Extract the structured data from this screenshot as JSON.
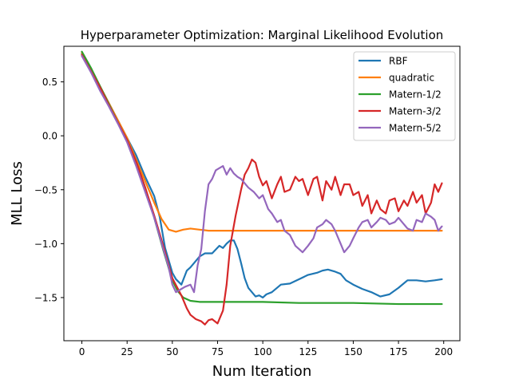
{
  "chart_data": {
    "type": "line",
    "title": "Hyperparameter Optimization: Marginal Likelihood Evolution",
    "xlabel": "Num Iteration",
    "ylabel": "MLL Loss",
    "xlim": [
      -9.95,
      208.95
    ],
    "ylim": [
      -1.9,
      0.83
    ],
    "xticks": [
      0,
      25,
      50,
      75,
      100,
      125,
      150,
      175,
      200
    ],
    "xtick_labels": [
      "0",
      "25",
      "50",
      "75",
      "100",
      "125",
      "150",
      "175",
      "200"
    ],
    "yticks": [
      -1.5,
      -1.0,
      -0.5,
      0.0,
      0.5
    ],
    "ytick_labels": [
      "−1.5",
      "−1.0",
      "−0.5",
      "0.0",
      "0.5"
    ],
    "grid": false,
    "legend_position": "top-right",
    "series": [
      {
        "name": "RBF",
        "color": "#1f77b4",
        "x": [
          0,
          5,
          10,
          15,
          20,
          25,
          30,
          35,
          40,
          43,
          46,
          50,
          52,
          55,
          58,
          60,
          62,
          65,
          68,
          72,
          76,
          78,
          80,
          82,
          84,
          86,
          88,
          90,
          92,
          94,
          96,
          98,
          100,
          102,
          105,
          110,
          115,
          120,
          125,
          130,
          133,
          136,
          140,
          143,
          146,
          150,
          155,
          160,
          165,
          170,
          175,
          180,
          185,
          190,
          195,
          199
        ],
        "y": [
          0.76,
          0.62,
          0.46,
          0.3,
          0.14,
          -0.02,
          -0.18,
          -0.38,
          -0.56,
          -0.75,
          -1.04,
          -1.27,
          -1.33,
          -1.38,
          -1.25,
          -1.22,
          -1.18,
          -1.12,
          -1.09,
          -1.09,
          -1.02,
          -1.04,
          -1.0,
          -0.97,
          -0.97,
          -1.05,
          -1.18,
          -1.32,
          -1.41,
          -1.45,
          -1.49,
          -1.48,
          -1.5,
          -1.47,
          -1.45,
          -1.38,
          -1.37,
          -1.33,
          -1.29,
          -1.27,
          -1.25,
          -1.24,
          -1.26,
          -1.28,
          -1.34,
          -1.38,
          -1.42,
          -1.45,
          -1.49,
          -1.47,
          -1.41,
          -1.34,
          -1.34,
          -1.35,
          -1.34,
          -1.33
        ]
      },
      {
        "name": "quadratic",
        "color": "#ff7f0e",
        "x": [
          0,
          5,
          10,
          15,
          20,
          25,
          30,
          35,
          40,
          44,
          48,
          52,
          56,
          60,
          65,
          70,
          80,
          100,
          125,
          150,
          175,
          199
        ],
        "y": [
          0.77,
          0.62,
          0.46,
          0.3,
          0.14,
          -0.02,
          -0.22,
          -0.42,
          -0.62,
          -0.77,
          -0.87,
          -0.89,
          -0.87,
          -0.86,
          -0.87,
          -0.88,
          -0.88,
          -0.88,
          -0.88,
          -0.88,
          -0.88,
          -0.88
        ]
      },
      {
        "name": "Matern-1/2",
        "color": "#2ca02c",
        "x": [
          0,
          5,
          10,
          15,
          20,
          25,
          30,
          35,
          40,
          45,
          50,
          53,
          56,
          60,
          65,
          70,
          80,
          100,
          120,
          150,
          175,
          199
        ],
        "y": [
          0.78,
          0.63,
          0.46,
          0.29,
          0.12,
          -0.04,
          -0.24,
          -0.48,
          -0.76,
          -1.06,
          -1.34,
          -1.44,
          -1.5,
          -1.53,
          -1.54,
          -1.54,
          -1.54,
          -1.54,
          -1.55,
          -1.55,
          -1.56,
          -1.56
        ]
      },
      {
        "name": "Matern-3/2",
        "color": "#d62728",
        "x": [
          0,
          5,
          10,
          15,
          20,
          25,
          30,
          35,
          40,
          45,
          50,
          55,
          58,
          60,
          63,
          66,
          68,
          70,
          72,
          75,
          78,
          80,
          82,
          85,
          88,
          90,
          92,
          94,
          96,
          98,
          100,
          102,
          105,
          108,
          110,
          112,
          115,
          118,
          120,
          122,
          125,
          128,
          130,
          133,
          135,
          138,
          140,
          143,
          145,
          148,
          150,
          153,
          155,
          158,
          160,
          163,
          165,
          168,
          170,
          173,
          175,
          178,
          180,
          183,
          185,
          188,
          190,
          193,
          195,
          197,
          199
        ],
        "y": [
          0.75,
          0.6,
          0.45,
          0.28,
          0.12,
          -0.04,
          -0.24,
          -0.48,
          -0.74,
          -1.02,
          -1.32,
          -1.48,
          -1.6,
          -1.66,
          -1.7,
          -1.72,
          -1.75,
          -1.71,
          -1.7,
          -1.74,
          -1.62,
          -1.38,
          -1.02,
          -0.74,
          -0.5,
          -0.36,
          -0.3,
          -0.22,
          -0.25,
          -0.38,
          -0.46,
          -0.42,
          -0.58,
          -0.45,
          -0.38,
          -0.52,
          -0.5,
          -0.38,
          -0.42,
          -0.4,
          -0.55,
          -0.4,
          -0.38,
          -0.6,
          -0.42,
          -0.5,
          -0.38,
          -0.55,
          -0.45,
          -0.45,
          -0.55,
          -0.52,
          -0.65,
          -0.55,
          -0.72,
          -0.6,
          -0.68,
          -0.72,
          -0.6,
          -0.58,
          -0.7,
          -0.6,
          -0.65,
          -0.52,
          -0.62,
          -0.55,
          -0.72,
          -0.62,
          -0.45,
          -0.52,
          -0.44
        ]
      },
      {
        "name": "Matern-5/2",
        "color": "#9467bd",
        "x": [
          0,
          5,
          10,
          15,
          20,
          25,
          30,
          35,
          40,
          45,
          48,
          50,
          52,
          55,
          57,
          60,
          62,
          64,
          66,
          68,
          70,
          72,
          74,
          76,
          78,
          80,
          82,
          84,
          86,
          88,
          90,
          92,
          95,
          98,
          100,
          103,
          105,
          108,
          110,
          112,
          115,
          118,
          120,
          122,
          125,
          128,
          130,
          133,
          135,
          138,
          140,
          143,
          145,
          148,
          150,
          153,
          155,
          158,
          160,
          163,
          165,
          168,
          170,
          173,
          175,
          178,
          180,
          183,
          185,
          188,
          190,
          193,
          195,
          197,
          199
        ],
        "y": [
          0.74,
          0.59,
          0.42,
          0.27,
          0.11,
          -0.06,
          -0.28,
          -0.52,
          -0.76,
          -1.05,
          -1.22,
          -1.38,
          -1.45,
          -1.42,
          -1.4,
          -1.38,
          -1.45,
          -1.2,
          -1.05,
          -0.7,
          -0.45,
          -0.4,
          -0.32,
          -0.3,
          -0.28,
          -0.36,
          -0.3,
          -0.35,
          -0.38,
          -0.4,
          -0.44,
          -0.48,
          -0.52,
          -0.58,
          -0.55,
          -0.68,
          -0.72,
          -0.8,
          -0.78,
          -0.88,
          -0.92,
          -1.02,
          -1.05,
          -1.08,
          -1.02,
          -0.95,
          -0.85,
          -0.82,
          -0.78,
          -0.82,
          -0.88,
          -1.0,
          -1.08,
          -1.02,
          -0.95,
          -0.85,
          -0.8,
          -0.78,
          -0.85,
          -0.8,
          -0.76,
          -0.78,
          -0.82,
          -0.8,
          -0.76,
          -0.82,
          -0.86,
          -0.88,
          -0.78,
          -0.8,
          -0.72,
          -0.75,
          -0.78,
          -0.88,
          -0.84
        ]
      }
    ]
  }
}
